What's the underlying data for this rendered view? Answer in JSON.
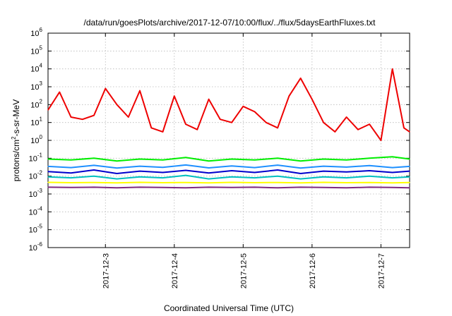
{
  "chart_data": {
    "type": "line",
    "title": "/data/run/goesPlots/archive/2017-12-07/10:00/flux/../flux/5daysEarthFluxes.txt",
    "xlabel": "Coordinated Universal Time (UTC)",
    "ylabel": {
      "prefix": "protons/cm",
      "sup": "2",
      "suffix": "-s-sr-MeV"
    },
    "yscale": "log",
    "ylim": [
      1e-06,
      1000000.0
    ],
    "xlim": [
      "2017-12-02T04:00",
      "2017-12-07T10:00"
    ],
    "grid": true,
    "x_ticks": [
      {
        "label": "2017-12-3",
        "x": "2017-12-03T00:00"
      },
      {
        "label": "2017-12-4",
        "x": "2017-12-04T00:00"
      },
      {
        "label": "2017-12-5",
        "x": "2017-12-05T00:00"
      },
      {
        "label": "2017-12-6",
        "x": "2017-12-06T00:00"
      },
      {
        "label": "2017-12-7",
        "x": "2017-12-07T00:00"
      }
    ],
    "y_ticks": [
      {
        "exp": "-6",
        "value": 1e-06
      },
      {
        "exp": "-5",
        "value": 1e-05
      },
      {
        "exp": "-4",
        "value": 0.0001
      },
      {
        "exp": "-3",
        "value": 0.001
      },
      {
        "exp": "-2",
        "value": 0.01
      },
      {
        "exp": "-1",
        "value": 0.1
      },
      {
        "exp": "0",
        "value": 1
      },
      {
        "exp": "1",
        "value": 10
      },
      {
        "exp": "2",
        "value": 100
      },
      {
        "exp": "3",
        "value": 1000
      },
      {
        "exp": "4",
        "value": 10000
      },
      {
        "exp": "5",
        "value": 100000
      },
      {
        "exp": "6",
        "value": 1000000
      }
    ],
    "series": [
      {
        "color": "#7f2a7f",
        "x": [
          "2017-12-02T04:00",
          "2017-12-02T12:00",
          "2017-12-02T20:00",
          "2017-12-03T04:00",
          "2017-12-03T12:00",
          "2017-12-03T20:00",
          "2017-12-04T04:00",
          "2017-12-04T12:00",
          "2017-12-04T20:00",
          "2017-12-05T04:00",
          "2017-12-05T12:00",
          "2017-12-05T20:00",
          "2017-12-06T04:00",
          "2017-12-06T12:00",
          "2017-12-06T20:00",
          "2017-12-07T04:00",
          "2017-12-07T10:00"
        ],
        "values": [
          0.0024,
          0.0023,
          0.0024,
          0.0022,
          0.0024,
          0.0023,
          0.0022,
          0.0024,
          0.0023,
          0.0024,
          0.0022,
          0.0024,
          0.0023,
          0.0022,
          0.0024,
          0.0023,
          0.0022
        ]
      },
      {
        "color": "#ffff00",
        "x": [
          "2017-12-02T04:00",
          "2017-12-02T12:00",
          "2017-12-02T20:00",
          "2017-12-03T04:00",
          "2017-12-03T12:00",
          "2017-12-03T20:00",
          "2017-12-04T04:00",
          "2017-12-04T12:00",
          "2017-12-04T20:00",
          "2017-12-05T04:00",
          "2017-12-05T12:00",
          "2017-12-05T20:00",
          "2017-12-06T04:00",
          "2017-12-06T12:00",
          "2017-12-06T20:00",
          "2017-12-07T04:00",
          "2017-12-07T10:00"
        ],
        "values": [
          0.0045,
          0.0043,
          0.0044,
          0.0042,
          0.0045,
          0.0043,
          0.0044,
          0.0042,
          0.0045,
          0.0043,
          0.0044,
          0.0042,
          0.0045,
          0.0043,
          0.0044,
          0.0042,
          0.0044
        ]
      },
      {
        "color": "#00c0c0",
        "x": [
          "2017-12-02T04:00",
          "2017-12-02T12:00",
          "2017-12-02T20:00",
          "2017-12-03T04:00",
          "2017-12-03T12:00",
          "2017-12-03T20:00",
          "2017-12-04T04:00",
          "2017-12-04T12:00",
          "2017-12-04T20:00",
          "2017-12-05T04:00",
          "2017-12-05T12:00",
          "2017-12-05T20:00",
          "2017-12-06T04:00",
          "2017-12-06T12:00",
          "2017-12-06T20:00",
          "2017-12-07T04:00",
          "2017-12-07T10:00"
        ],
        "values": [
          0.009,
          0.008,
          0.01,
          0.007,
          0.009,
          0.008,
          0.011,
          0.007,
          0.009,
          0.008,
          0.01,
          0.007,
          0.009,
          0.008,
          0.01,
          0.008,
          0.009
        ]
      },
      {
        "color": "#0000cc",
        "x": [
          "2017-12-02T04:00",
          "2017-12-02T12:00",
          "2017-12-02T20:00",
          "2017-12-03T04:00",
          "2017-12-03T12:00",
          "2017-12-03T20:00",
          "2017-12-04T04:00",
          "2017-12-04T12:00",
          "2017-12-04T20:00",
          "2017-12-05T04:00",
          "2017-12-05T12:00",
          "2017-12-05T20:00",
          "2017-12-06T04:00",
          "2017-12-06T12:00",
          "2017-12-06T20:00",
          "2017-12-07T04:00",
          "2017-12-07T10:00"
        ],
        "values": [
          0.018,
          0.015,
          0.022,
          0.014,
          0.019,
          0.016,
          0.021,
          0.015,
          0.02,
          0.016,
          0.022,
          0.014,
          0.019,
          0.017,
          0.02,
          0.016,
          0.019
        ]
      },
      {
        "color": "#1e90ff",
        "x": [
          "2017-12-02T04:00",
          "2017-12-02T12:00",
          "2017-12-02T20:00",
          "2017-12-03T04:00",
          "2017-12-03T12:00",
          "2017-12-03T20:00",
          "2017-12-04T04:00",
          "2017-12-04T12:00",
          "2017-12-04T20:00",
          "2017-12-05T04:00",
          "2017-12-05T12:00",
          "2017-12-05T20:00",
          "2017-12-06T04:00",
          "2017-12-06T12:00",
          "2017-12-06T20:00",
          "2017-12-07T04:00",
          "2017-12-07T10:00"
        ],
        "values": [
          0.035,
          0.03,
          0.04,
          0.028,
          0.036,
          0.031,
          0.042,
          0.029,
          0.037,
          0.03,
          0.041,
          0.028,
          0.036,
          0.032,
          0.039,
          0.03,
          0.035
        ]
      },
      {
        "color": "#00ee00",
        "x": [
          "2017-12-02T04:00",
          "2017-12-02T12:00",
          "2017-12-02T20:00",
          "2017-12-03T04:00",
          "2017-12-03T12:00",
          "2017-12-03T20:00",
          "2017-12-04T04:00",
          "2017-12-04T12:00",
          "2017-12-04T20:00",
          "2017-12-05T04:00",
          "2017-12-05T12:00",
          "2017-12-05T20:00",
          "2017-12-06T04:00",
          "2017-12-06T12:00",
          "2017-12-06T20:00",
          "2017-12-07T04:00",
          "2017-12-07T10:00"
        ],
        "values": [
          0.09,
          0.08,
          0.1,
          0.07,
          0.09,
          0.08,
          0.11,
          0.07,
          0.09,
          0.08,
          0.1,
          0.07,
          0.09,
          0.08,
          0.1,
          0.12,
          0.09
        ]
      },
      {
        "color": "#ee0000",
        "x": [
          "2017-12-02T04:00",
          "2017-12-02T08:00",
          "2017-12-02T12:00",
          "2017-12-02T16:00",
          "2017-12-02T20:00",
          "2017-12-03T00:00",
          "2017-12-03T04:00",
          "2017-12-03T08:00",
          "2017-12-03T12:00",
          "2017-12-03T16:00",
          "2017-12-03T20:00",
          "2017-12-04T00:00",
          "2017-12-04T04:00",
          "2017-12-04T08:00",
          "2017-12-04T12:00",
          "2017-12-04T16:00",
          "2017-12-04T20:00",
          "2017-12-05T00:00",
          "2017-12-05T04:00",
          "2017-12-05T08:00",
          "2017-12-05T12:00",
          "2017-12-05T16:00",
          "2017-12-05T20:00",
          "2017-12-06T00:00",
          "2017-12-06T04:00",
          "2017-12-06T08:00",
          "2017-12-06T12:00",
          "2017-12-06T16:00",
          "2017-12-06T20:00",
          "2017-12-07T00:00",
          "2017-12-07T04:00",
          "2017-12-07T08:00",
          "2017-12-07T10:00"
        ],
        "values": [
          50,
          500,
          20,
          15,
          25,
          800,
          100,
          20,
          600,
          5,
          3,
          300,
          8,
          4,
          200,
          15,
          10,
          80,
          40,
          10,
          5,
          300,
          3000,
          200,
          10,
          3,
          20,
          4,
          8,
          1,
          10000,
          5,
          3
        ]
      }
    ]
  }
}
